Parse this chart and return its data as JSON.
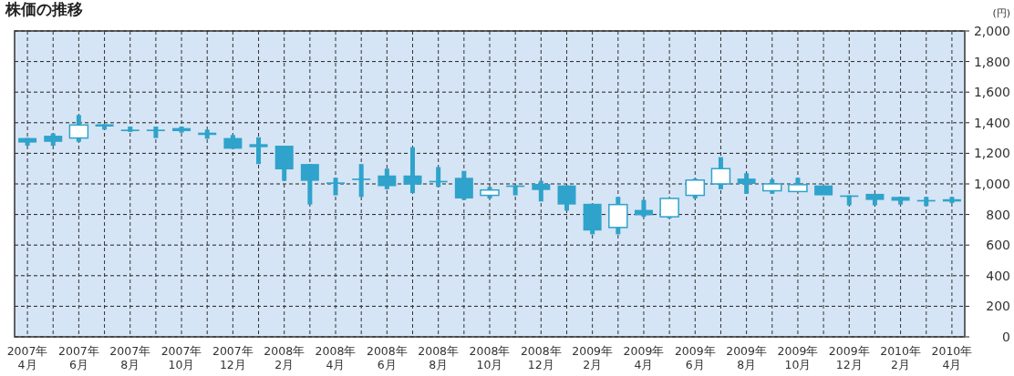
{
  "chart_data": {
    "type": "candlestick",
    "title": "株価の推移",
    "ylabel": "(円)",
    "categories": [
      "2007年4月",
      null,
      "2007年6月",
      null,
      "2007年8月",
      null,
      "2007年10月",
      null,
      "2007年12月",
      null,
      "2008年2月",
      null,
      "2008年4月",
      null,
      "2008年6月",
      null,
      "2008年8月",
      null,
      "2008年10月",
      null,
      "2008年12月",
      null,
      "2009年2月",
      null,
      "2009年4月",
      null,
      "2009年6月",
      null,
      "2009年8月",
      null,
      "2009年10月",
      null,
      "2009年12月",
      null,
      "2010年2月",
      null,
      "2010年4月"
    ],
    "ohlc": [
      [
        1300,
        1300,
        1250,
        1270
      ],
      [
        1315,
        1330,
        1250,
        1275
      ],
      [
        1300,
        1450,
        1275,
        1385
      ],
      [
        1390,
        1390,
        1355,
        1375
      ],
      [
        1355,
        1375,
        1340,
        1345
      ],
      [
        1355,
        1375,
        1300,
        1345
      ],
      [
        1365,
        1375,
        1335,
        1345
      ],
      [
        1335,
        1355,
        1295,
        1320
      ],
      [
        1300,
        1320,
        1230,
        1230
      ],
      [
        1260,
        1305,
        1130,
        1240
      ],
      [
        1250,
        1250,
        1020,
        1095
      ],
      [
        1130,
        1130,
        865,
        1020
      ],
      [
        1010,
        1040,
        925,
        1000
      ],
      [
        1035,
        1130,
        915,
        1025
      ],
      [
        1055,
        1100,
        965,
        985
      ],
      [
        1055,
        1240,
        940,
        995
      ],
      [
        1020,
        1110,
        980,
        1010
      ],
      [
        1040,
        1085,
        895,
        905
      ],
      [
        925,
        980,
        905,
        960
      ],
      [
        990,
        990,
        925,
        980
      ],
      [
        1000,
        1020,
        885,
        960
      ],
      [
        990,
        990,
        825,
        865
      ],
      [
        870,
        870,
        670,
        695
      ],
      [
        715,
        915,
        670,
        865
      ],
      [
        830,
        895,
        785,
        795
      ],
      [
        785,
        905,
        775,
        905
      ],
      [
        925,
        1035,
        905,
        1025
      ],
      [
        1000,
        1175,
        965,
        1100
      ],
      [
        1035,
        1070,
        935,
        1000
      ],
      [
        955,
        1030,
        935,
        1000
      ],
      [
        950,
        1040,
        950,
        995
      ],
      [
        990,
        990,
        925,
        925
      ],
      [
        925,
        925,
        860,
        915
      ],
      [
        935,
        935,
        860,
        895
      ],
      [
        915,
        915,
        865,
        890
      ],
      [
        895,
        915,
        855,
        885
      ],
      [
        900,
        915,
        875,
        885
      ]
    ],
    "color": "#2fa3cb",
    "ylim": [
      0,
      2000
    ],
    "yticks": [
      0,
      {
        "value": 200,
        "label": "200"
      },
      {
        "value": 400,
        "label": "400"
      },
      {
        "value": 600,
        "label": "600"
      },
      {
        "value": 800,
        "label": "800"
      },
      {
        "value": 1000,
        "label": "1,000"
      },
      {
        "value": 1200,
        "label": "1,200"
      },
      {
        "value": 1400,
        "label": "1,400"
      },
      {
        "value": 1600,
        "label": "1,600"
      },
      {
        "value": 1800,
        "label": "1,800"
      },
      {
        "value": 2000,
        "label": "2,000"
      }
    ],
    "grid": true
  }
}
